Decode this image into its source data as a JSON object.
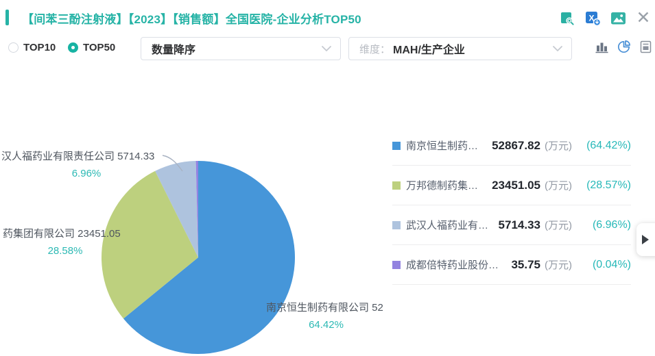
{
  "header": {
    "title": "【间苯三酚注射液】【2023】【销售额】全国医院-企业分析TOP50",
    "icons": [
      "doc-search-icon",
      "excel-export-icon",
      "image-export-icon",
      "close-icon"
    ]
  },
  "controls": {
    "radios": [
      {
        "label": "TOP10",
        "selected": false
      },
      {
        "label": "TOP50",
        "selected": true
      }
    ],
    "sort_select": {
      "value": "数量降序"
    },
    "dimension_select": {
      "prefix": "维度：",
      "value": "MAH/生产企业"
    },
    "view_icons": [
      "bar-chart-icon",
      "pie-chart-icon",
      "report-icon"
    ],
    "active_view": "pie"
  },
  "chart_data": {
    "type": "pie",
    "title": "全国医院-企业分析TOP50 销售额占比",
    "unit": "万元",
    "legend_position": "right",
    "series": [
      {
        "name": "南京恒生制药有限公司",
        "value": 52867.82,
        "percent": "64.42%",
        "color": "#4696d9"
      },
      {
        "name": "万邦德制药集团有限公司",
        "value": 23451.05,
        "percent": "28.57%",
        "color": "#bdd07e"
      },
      {
        "name": "武汉人福药业有限责任公司",
        "value": 5714.33,
        "percent": "6.96%",
        "color": "#aec3de"
      },
      {
        "name": "成都倍特药业股份有限公司",
        "value": 35.75,
        "percent": "0.04%",
        "color": "#9383e0"
      }
    ],
    "pie_labels": [
      {
        "text": "汉人福药业有限责任公司 5714.33",
        "percent": "6.96%"
      },
      {
        "text": "药集团有限公司 23451.05",
        "percent": "28.58%"
      },
      {
        "text": "南京恒生制药有限公司 52",
        "percent": "64.42%"
      }
    ]
  },
  "legend": {
    "rows": [
      {
        "name": "南京恒生制药…",
        "value": "52867.82",
        "unit": "(万元)",
        "percent": "(64.42%)",
        "color": "#4696d9"
      },
      {
        "name": "万邦德制药集…",
        "value": "23451.05",
        "unit": "(万元)",
        "percent": "(28.57%)",
        "color": "#bdd07e"
      },
      {
        "name": "武汉人福药业有…",
        "value": "5714.33",
        "unit": "(万元)",
        "percent": "(6.96%)",
        "color": "#aec3de"
      },
      {
        "name": "成都倍特药业股份…",
        "value": "35.75",
        "unit": "(万元)",
        "percent": "(0.04%)",
        "color": "#9383e0"
      }
    ]
  },
  "colors": {
    "accent_teal": "#26b3a6",
    "percent_teal": "#26b8b8",
    "pie_icon_blue": "#4a90d6"
  }
}
